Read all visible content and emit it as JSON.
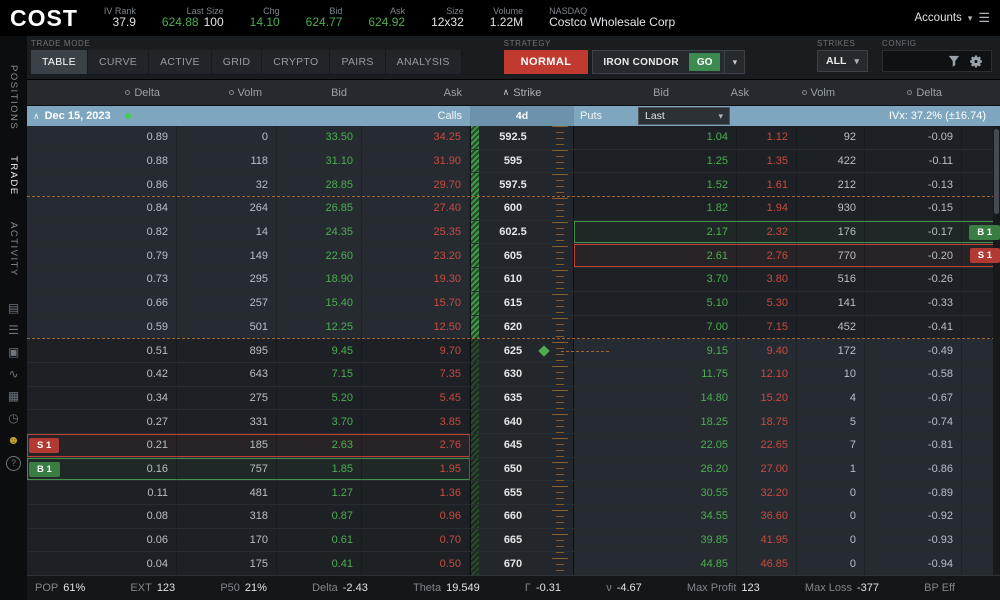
{
  "icons": {
    "caret_down": "▾",
    "chevron_up": "∧",
    "menu": "☰"
  },
  "colors": {
    "green": "#4cae4f",
    "red": "#c94a3e",
    "buy": "#3a7d43",
    "sell": "#b23a32",
    "header_blue": "#7ea6bf",
    "normal_button": "#c03a30",
    "accent_yellow": "#c9a227"
  },
  "header": {
    "symbol": "COST",
    "iv_rank_label": "IV Rank",
    "iv_rank": "37.9",
    "last_size_label": "Last Size",
    "last": "624.88",
    "last_size": "100",
    "chg_label": "Chg",
    "chg": "14.10",
    "bid_label": "Bid",
    "bid": "624.77",
    "ask_label": "Ask",
    "ask": "624.92",
    "size_label": "Size",
    "size": "12x32",
    "volume_label": "Volume",
    "volume": "1.22M",
    "exchange": "NASDAQ",
    "company": "Costco Wholesale Corp",
    "accounts_label": "Accounts"
  },
  "toolbar": {
    "trade_mode_label": "TRADE MODE",
    "tabs": [
      "TABLE",
      "CURVE",
      "ACTIVE",
      "GRID",
      "CRYPTO",
      "PAIRS",
      "ANALYSIS"
    ],
    "active_tab": "TABLE",
    "strategy_label": "STRATEGY",
    "normal_button": "NORMAL",
    "strategy_value": "IRON CONDOR",
    "go_button": "GO",
    "strikes_label": "STRIKES",
    "strikes_value": "ALL",
    "config_label": "CONFIG"
  },
  "sidebar": {
    "items": [
      {
        "label": "POSITIONS",
        "active": false
      },
      {
        "label": "TRADE",
        "active": true
      },
      {
        "label": "ACTIVITY",
        "active": false
      }
    ],
    "icons": [
      {
        "name": "layers-icon",
        "glyph": "▤"
      },
      {
        "name": "list-icon",
        "glyph": "☰"
      },
      {
        "name": "archive-icon",
        "glyph": "▣"
      },
      {
        "name": "chart-icon",
        "glyph": "∿"
      },
      {
        "name": "grid-icon",
        "glyph": "▦"
      },
      {
        "name": "clock-icon",
        "glyph": "◷"
      },
      {
        "name": "users-icon",
        "glyph": "☻",
        "accent": true
      },
      {
        "name": "help-icon",
        "glyph": "?",
        "circle": true
      }
    ]
  },
  "chain": {
    "columns_left": [
      "Delta",
      "Volm",
      "Bid",
      "Ask"
    ],
    "strike_col": "Strike",
    "columns_right": [
      "Bid",
      "Ask",
      "Volm",
      "Delta"
    ],
    "expiry": "Dec 15, 2023",
    "dte": "4d",
    "calls_label": "Calls",
    "puts_label": "Puts",
    "last_dropdown": "Last",
    "ivx": "IVx: 37.2% (±16.74)",
    "rows": [
      {
        "delta": "0.89",
        "volm": "0",
        "bid": "33.50",
        "ask": "34.25",
        "strike": "592.5",
        "pbid": "1.04",
        "pask": "1.12",
        "pvolm": "92",
        "pdelta": "-0.09"
      },
      {
        "delta": "0.88",
        "volm": "118",
        "bid": "31.10",
        "ask": "31.90",
        "strike": "595",
        "pbid": "1.25",
        "pask": "1.35",
        "pvolm": "422",
        "pdelta": "-0.11"
      },
      {
        "delta": "0.86",
        "volm": "32",
        "bid": "28.85",
        "ask": "29.70",
        "strike": "597.5",
        "pbid": "1.52",
        "pask": "1.61",
        "pvolm": "212",
        "pdelta": "-0.13"
      },
      {
        "delta": "0.84",
        "volm": "264",
        "bid": "26.85",
        "ask": "27.40",
        "strike": "600",
        "pbid": "1.82",
        "pask": "1.94",
        "pvolm": "930",
        "pdelta": "-0.15",
        "dash": true
      },
      {
        "delta": "0.82",
        "volm": "14",
        "bid": "24.35",
        "ask": "25.35",
        "strike": "602.5",
        "pbid": "2.17",
        "pask": "2.32",
        "pvolm": "176",
        "pdelta": "-0.17",
        "pos": {
          "side": "put",
          "label": "B 1",
          "cls": "buy"
        }
      },
      {
        "delta": "0.79",
        "volm": "149",
        "bid": "22.60",
        "ask": "23.20",
        "strike": "605",
        "pbid": "2.61",
        "pask": "2.76",
        "pvolm": "770",
        "pdelta": "-0.20",
        "pos": {
          "side": "put",
          "label": "S 1",
          "cls": "sell"
        }
      },
      {
        "delta": "0.73",
        "volm": "295",
        "bid": "18.90",
        "ask": "19.30",
        "strike": "610",
        "pbid": "3.70",
        "pask": "3.80",
        "pvolm": "516",
        "pdelta": "-0.26"
      },
      {
        "delta": "0.66",
        "volm": "257",
        "bid": "15.40",
        "ask": "15.70",
        "strike": "615",
        "pbid": "5.10",
        "pask": "5.30",
        "pvolm": "141",
        "pdelta": "-0.33"
      },
      {
        "delta": "0.59",
        "volm": "501",
        "bid": "12.25",
        "ask": "12.50",
        "strike": "620",
        "pbid": "7.00",
        "pask": "7.15",
        "pvolm": "452",
        "pdelta": "-0.41"
      },
      {
        "delta": "0.51",
        "volm": "895",
        "bid": "9.45",
        "ask": "9.70",
        "strike": "625",
        "pbid": "9.15",
        "pask": "9.40",
        "pvolm": "172",
        "pdelta": "-0.49",
        "dash": true
      },
      {
        "delta": "0.42",
        "volm": "643",
        "bid": "7.15",
        "ask": "7.35",
        "strike": "630",
        "pbid": "11.75",
        "pask": "12.10",
        "pvolm": "10",
        "pdelta": "-0.58"
      },
      {
        "delta": "0.34",
        "volm": "275",
        "bid": "5.20",
        "ask": "5.45",
        "strike": "635",
        "pbid": "14.80",
        "pask": "15.20",
        "pvolm": "4",
        "pdelta": "-0.67"
      },
      {
        "delta": "0.27",
        "volm": "331",
        "bid": "3.70",
        "ask": "3.85",
        "strike": "640",
        "pbid": "18.25",
        "pask": "18.75",
        "pvolm": "5",
        "pdelta": "-0.74"
      },
      {
        "delta": "0.21",
        "volm": "185",
        "bid": "2.63",
        "ask": "2.76",
        "strike": "645",
        "pbid": "22.05",
        "pask": "22.65",
        "pvolm": "7",
        "pdelta": "-0.81",
        "pos": {
          "side": "call",
          "label": "S 1",
          "cls": "sell"
        }
      },
      {
        "delta": "0.16",
        "volm": "757",
        "bid": "1.85",
        "ask": "1.95",
        "strike": "650",
        "pbid": "26.20",
        "pask": "27.00",
        "pvolm": "1",
        "pdelta": "-0.86",
        "pos": {
          "side": "call",
          "label": "B 1",
          "cls": "buy"
        }
      },
      {
        "delta": "0.11",
        "volm": "481",
        "bid": "1.27",
        "ask": "1.36",
        "strike": "655",
        "pbid": "30.55",
        "pask": "32.20",
        "pvolm": "0",
        "pdelta": "-0.89"
      },
      {
        "delta": "0.08",
        "volm": "318",
        "bid": "0.87",
        "ask": "0.96",
        "strike": "660",
        "pbid": "34.55",
        "pask": "36.60",
        "pvolm": "0",
        "pdelta": "-0.92"
      },
      {
        "delta": "0.06",
        "volm": "170",
        "bid": "0.61",
        "ask": "0.70",
        "strike": "665",
        "pbid": "39.85",
        "pask": "41.95",
        "pvolm": "0",
        "pdelta": "-0.93"
      },
      {
        "delta": "0.04",
        "volm": "175",
        "bid": "0.41",
        "ask": "0.50",
        "strike": "670",
        "pbid": "44.85",
        "pask": "46.85",
        "pvolm": "0",
        "pdelta": "-0.94"
      }
    ]
  },
  "status_bar": {
    "items": [
      {
        "key": "pop",
        "label": "POP",
        "value": "61%"
      },
      {
        "key": "ext",
        "label": "EXT",
        "value": "123"
      },
      {
        "key": "p50",
        "label": "P50",
        "value": "21%"
      },
      {
        "key": "delta",
        "label": "Delta",
        "value": "-2.43"
      },
      {
        "key": "theta",
        "label": "Theta",
        "value": "19.549"
      },
      {
        "key": "gamma",
        "label": "Γ",
        "value": "-0.31"
      },
      {
        "key": "nu",
        "label": "ν",
        "value": "-4.67"
      },
      {
        "key": "max-profit",
        "label": "Max Profit",
        "value": "123"
      },
      {
        "key": "max-loss",
        "label": "Max Loss",
        "value": "-377"
      },
      {
        "key": "bp-eff",
        "label": "BP Eff",
        "value": ""
      }
    ]
  }
}
